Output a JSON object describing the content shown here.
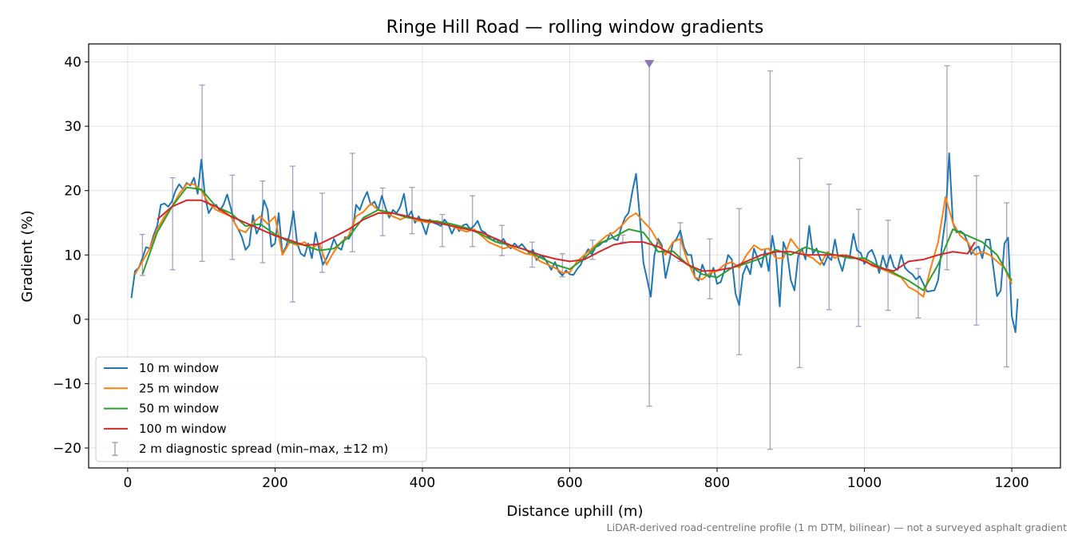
{
  "chart_data": {
    "type": "line",
    "title": "Ringe Hill Road — rolling window gradients",
    "xlabel": "Distance uphill (m)",
    "ylabel": "Gradient (%)",
    "footnote": "LiDAR-derived road-centreline profile (1 m DTM, bilinear) — not a surveyed asphalt gradient",
    "xlim": [
      -53,
      1266
    ],
    "ylim": [
      -23.1,
      42.8
    ],
    "xticks": [
      0,
      200,
      400,
      600,
      800,
      1000,
      1200
    ],
    "yticks": [
      -20,
      -10,
      0,
      10,
      20,
      30,
      40
    ],
    "ytick_labels": [
      "−20",
      "−10",
      "0",
      "10",
      "20",
      "30",
      "40"
    ],
    "grid": true,
    "legend_position": "lower-left",
    "series": [
      {
        "name": "10 m window",
        "color": "#1f77b4",
        "x": [
          5,
          10,
          15,
          20,
          25,
          30,
          35,
          40,
          45,
          50,
          55,
          60,
          65,
          70,
          75,
          80,
          85,
          90,
          95,
          100,
          105,
          110,
          115,
          120,
          125,
          130,
          135,
          140,
          145,
          150,
          155,
          160,
          165,
          170,
          175,
          180,
          185,
          190,
          195,
          200,
          205,
          210,
          215,
          220,
          225,
          230,
          235,
          240,
          245,
          250,
          255,
          260,
          265,
          270,
          275,
          280,
          285,
          290,
          295,
          300,
          305,
          310,
          315,
          320,
          325,
          330,
          335,
          340,
          345,
          350,
          355,
          360,
          365,
          370,
          375,
          380,
          385,
          390,
          395,
          400,
          405,
          410,
          415,
          420,
          425,
          430,
          435,
          440,
          445,
          450,
          455,
          460,
          465,
          470,
          475,
          480,
          485,
          490,
          495,
          500,
          505,
          510,
          515,
          520,
          525,
          530,
          535,
          540,
          545,
          550,
          555,
          560,
          565,
          570,
          575,
          580,
          585,
          590,
          595,
          600,
          605,
          610,
          615,
          620,
          625,
          630,
          635,
          640,
          645,
          650,
          655,
          660,
          665,
          670,
          675,
          680,
          685,
          690,
          695,
          700,
          705,
          710,
          715,
          720,
          725,
          730,
          735,
          740,
          745,
          750,
          755,
          760,
          765,
          770,
          775,
          780,
          785,
          790,
          795,
          800,
          805,
          810,
          815,
          820,
          825,
          830,
          835,
          840,
          845,
          850,
          855,
          860,
          865,
          870,
          875,
          880,
          885,
          890,
          895,
          900,
          905,
          910,
          915,
          920,
          925,
          930,
          935,
          940,
          945,
          950,
          955,
          960,
          965,
          970,
          975,
          980,
          985,
          990,
          995,
          1000,
          1005,
          1010,
          1015,
          1020,
          1025,
          1030,
          1035,
          1040,
          1045,
          1050,
          1055,
          1060,
          1065,
          1070,
          1075,
          1080,
          1085,
          1090,
          1095,
          1100,
          1105,
          1110,
          1115,
          1120,
          1125,
          1130,
          1135,
          1140,
          1145,
          1150,
          1155,
          1160,
          1165,
          1170,
          1175,
          1180,
          1185,
          1190,
          1195,
          1200,
          1205,
          1208
        ],
        "y": [
          3.3,
          7.5,
          8.0,
          9.5,
          11.2,
          11.0,
          13.0,
          14.5,
          17.8,
          18.0,
          17.5,
          18.3,
          20.0,
          21.0,
          20.2,
          21.2,
          20.8,
          22.0,
          19.5,
          24.8,
          19.0,
          16.5,
          17.5,
          17.8,
          16.9,
          17.8,
          19.4,
          17.3,
          15.0,
          14.0,
          12.8,
          10.8,
          11.5,
          16.2,
          13.3,
          14.5,
          18.5,
          17.0,
          11.3,
          11.8,
          16.5,
          10.2,
          11.3,
          13.3,
          16.8,
          11.8,
          10.2,
          9.8,
          11.8,
          9.5,
          13.5,
          10.8,
          8.5,
          9.5,
          10.8,
          12.5,
          11.2,
          10.8,
          12.8,
          12.5,
          13.5,
          17.8,
          17.0,
          18.6,
          19.8,
          17.8,
          18.3,
          17.0,
          19.2,
          17.3,
          15.8,
          17.0,
          16.5,
          17.5,
          19.5,
          15.8,
          16.8,
          15.0,
          16.0,
          14.8,
          13.2,
          15.5,
          15.0,
          14.8,
          14.5,
          15.5,
          14.8,
          13.3,
          14.5,
          13.7,
          14.6,
          14.8,
          14.0,
          14.5,
          15.3,
          13.8,
          13.5,
          12.8,
          12.3,
          12.5,
          11.8,
          12.5,
          11.5,
          11.0,
          11.8,
          11.2,
          11.7,
          11.0,
          10.3,
          10.8,
          9.2,
          9.9,
          9.6,
          8.7,
          7.7,
          8.9,
          7.4,
          6.8,
          7.6,
          7.0,
          6.9,
          7.8,
          8.5,
          9.9,
          10.9,
          10.1,
          11.2,
          11.5,
          12.0,
          12.1,
          13.4,
          12.5,
          12.3,
          14.3,
          15.8,
          16.6,
          19.9,
          22.6,
          16.0,
          8.8,
          6.2,
          3.5,
          10.0,
          12.5,
          11.5,
          6.4,
          9.0,
          11.9,
          12.5,
          13.8,
          11.2,
          10.0,
          10.0,
          6.5,
          6.0,
          8.5,
          7.0,
          6.5,
          8.0,
          5.5,
          5.8,
          7.6,
          10.0,
          9.3,
          4.0,
          2.2,
          7.0,
          8.4,
          7.0,
          11.0,
          9.5,
          8.1,
          10.7,
          7.5,
          13.0,
          9.6,
          2.0,
          12.0,
          10.4,
          6.1,
          4.5,
          9.8,
          11.0,
          9.3,
          14.5,
          10.2,
          11.0,
          9.4,
          8.4,
          9.8,
          9.2,
          12.4,
          9.2,
          7.5,
          10.0,
          9.7,
          13.3,
          10.7,
          10.3,
          8.6,
          10.3,
          10.8,
          9.4,
          7.2,
          9.9,
          8.0,
          10.0,
          8.1,
          7.7,
          10.0,
          8.0,
          7.4,
          7.0,
          6.2,
          6.7,
          5.5,
          4.3,
          4.4,
          4.5,
          6.1,
          11.3,
          15.7,
          25.8,
          15.0,
          13.5,
          13.7,
          13.3,
          12.0,
          10.1,
          11.0,
          11.3,
          9.5,
          12.4,
          12.4,
          8.0,
          3.6,
          4.5,
          11.8,
          12.7,
          0.5,
          -2.0,
          3.2
        ]
      },
      {
        "name": "25 m window",
        "color": "#ff7f0e",
        "x": [
          10,
          20,
          30,
          40,
          50,
          60,
          70,
          80,
          90,
          100,
          110,
          120,
          130,
          140,
          150,
          160,
          170,
          180,
          190,
          200,
          210,
          220,
          230,
          240,
          250,
          260,
          270,
          280,
          290,
          300,
          310,
          320,
          330,
          340,
          350,
          360,
          370,
          380,
          390,
          400,
          410,
          420,
          430,
          440,
          450,
          460,
          470,
          480,
          490,
          500,
          510,
          520,
          530,
          540,
          550,
          560,
          570,
          580,
          590,
          600,
          610,
          620,
          630,
          640,
          650,
          660,
          670,
          680,
          690,
          700,
          710,
          720,
          730,
          740,
          750,
          760,
          770,
          780,
          790,
          800,
          810,
          820,
          830,
          840,
          850,
          860,
          870,
          880,
          890,
          900,
          910,
          920,
          930,
          940,
          950,
          960,
          970,
          980,
          990,
          1000,
          1010,
          1020,
          1030,
          1040,
          1050,
          1060,
          1070,
          1080,
          1090,
          1100,
          1110,
          1120,
          1130,
          1140,
          1150,
          1160,
          1170,
          1180,
          1190,
          1200
        ],
        "y": [
          7,
          9,
          11,
          14,
          16,
          17.5,
          19.5,
          21,
          21,
          20,
          18,
          17,
          16.5,
          16,
          14,
          13.5,
          15,
          16,
          14.8,
          16,
          10,
          12,
          11.5,
          12,
          11,
          11.8,
          8.5,
          10.5,
          12,
          13,
          16,
          16.7,
          18,
          17,
          16.5,
          16,
          15.5,
          16,
          15.4,
          15.2,
          15,
          15.3,
          14.8,
          14.5,
          14,
          13.6,
          14,
          13,
          12,
          11.5,
          11,
          11.3,
          10.7,
          10.2,
          10,
          9,
          8.5,
          8,
          7.2,
          7.3,
          9,
          10,
          11,
          12,
          13,
          13.5,
          14.5,
          15.8,
          16.5,
          15.2,
          14,
          12,
          10,
          12,
          12.5,
          9,
          6.5,
          6.2,
          7.2,
          7.5,
          8.5,
          8.9,
          8,
          10,
          11.5,
          10.8,
          11,
          9.5,
          9.5,
          12.5,
          11,
          10,
          9.5,
          8.5,
          10.5,
          9.5,
          10,
          9.8,
          9.5,
          9.3,
          8.3,
          8,
          7.5,
          7,
          6.5,
          5,
          4.4,
          3.5,
          8,
          12,
          19,
          15,
          13,
          12,
          10,
          10.5,
          10,
          9,
          8,
          5.5
        ]
      },
      {
        "name": "50 m window",
        "color": "#2ca02c",
        "x": [
          20,
          40,
          60,
          80,
          100,
          120,
          140,
          160,
          180,
          200,
          220,
          240,
          260,
          280,
          300,
          320,
          340,
          360,
          380,
          400,
          420,
          440,
          460,
          480,
          500,
          520,
          540,
          560,
          580,
          600,
          620,
          640,
          660,
          680,
          700,
          720,
          740,
          760,
          780,
          800,
          820,
          840,
          860,
          880,
          900,
          920,
          940,
          960,
          980,
          1000,
          1020,
          1040,
          1060,
          1080,
          1100,
          1120,
          1140,
          1160,
          1180,
          1200
        ],
        "y": [
          7,
          13.5,
          17.5,
          20.5,
          20.2,
          17.5,
          16.5,
          14.5,
          14.8,
          13.2,
          12,
          11.5,
          10.7,
          11,
          12.8,
          15.8,
          17,
          16.5,
          15.8,
          15.5,
          15.2,
          14.8,
          14.2,
          13.2,
          12,
          11.5,
          10.8,
          9.6,
          8.5,
          7.8,
          9.5,
          11.8,
          12.8,
          14,
          13.5,
          10.5,
          10.6,
          8.5,
          7,
          6.5,
          8,
          8.7,
          9.5,
          10.8,
          10,
          11.2,
          10.5,
          10,
          9.5,
          9.5,
          8.2,
          7.2,
          6,
          4.5,
          8.5,
          14,
          13,
          12,
          10,
          6
        ]
      },
      {
        "name": "100 m window",
        "color": "#d62728",
        "x": [
          40,
          60,
          80,
          100,
          120,
          140,
          160,
          180,
          200,
          220,
          240,
          260,
          280,
          300,
          320,
          340,
          360,
          380,
          400,
          420,
          440,
          460,
          480,
          500,
          520,
          540,
          560,
          580,
          600,
          620,
          640,
          660,
          680,
          700,
          720,
          740,
          760,
          780,
          800,
          820,
          840,
          860,
          880,
          900,
          920,
          940,
          960,
          980,
          1000,
          1020,
          1040,
          1060,
          1080,
          1100,
          1120,
          1140,
          1150
        ],
        "y": [
          15.5,
          17.5,
          18.5,
          18.5,
          17.5,
          16,
          15,
          14,
          13,
          12.3,
          11.5,
          11.7,
          12.8,
          14,
          15.5,
          16.5,
          16.5,
          16,
          15.4,
          15,
          14.5,
          14,
          13.5,
          12.5,
          11.5,
          10.8,
          10,
          9.4,
          9,
          9.3,
          10.5,
          11.6,
          12,
          12,
          11.3,
          10,
          8.5,
          7.5,
          7.6,
          8,
          9,
          10,
          10.5,
          10.5,
          10,
          10,
          10,
          9.8,
          9,
          8,
          7.5,
          9,
          9.3,
          10,
          10.5,
          10.2,
          12
        ]
      },
      {
        "name": "2 m diagnostic spread (min–max, ±12 m)",
        "color": "#9a8fba",
        "type": "errorbar",
        "x": [
          20,
          61,
          101,
          142,
          183,
          224,
          264,
          305,
          346,
          386,
          427,
          468,
          508,
          549,
          590,
          631,
          672,
          708,
          750,
          790,
          830,
          872,
          912,
          952,
          992,
          1032,
          1073,
          1112,
          1152,
          1193
        ],
        "low": [
          6.8,
          7.7,
          9.0,
          9.3,
          8.8,
          2.7,
          7.3,
          10.5,
          13.0,
          13.3,
          11.3,
          11.3,
          9.9,
          8.1,
          6.6,
          9.3,
          12.0,
          -13.5,
          9.0,
          3.2,
          -5.5,
          -20.2,
          -7.5,
          1.5,
          -1.1,
          1.4,
          0.2,
          7.7,
          -0.9,
          -7.4
        ],
        "high": [
          13.2,
          22.0,
          36.4,
          22.4,
          21.5,
          23.8,
          19.6,
          25.8,
          20.4,
          20.5,
          16.3,
          19.2,
          14.6,
          12.0,
          10.2,
          12.3,
          13.1,
          39.8,
          15.0,
          12.5,
          17.2,
          38.6,
          25.0,
          21.0,
          17.1,
          15.4,
          7.9,
          39.4,
          22.3,
          18.1
        ]
      }
    ]
  }
}
